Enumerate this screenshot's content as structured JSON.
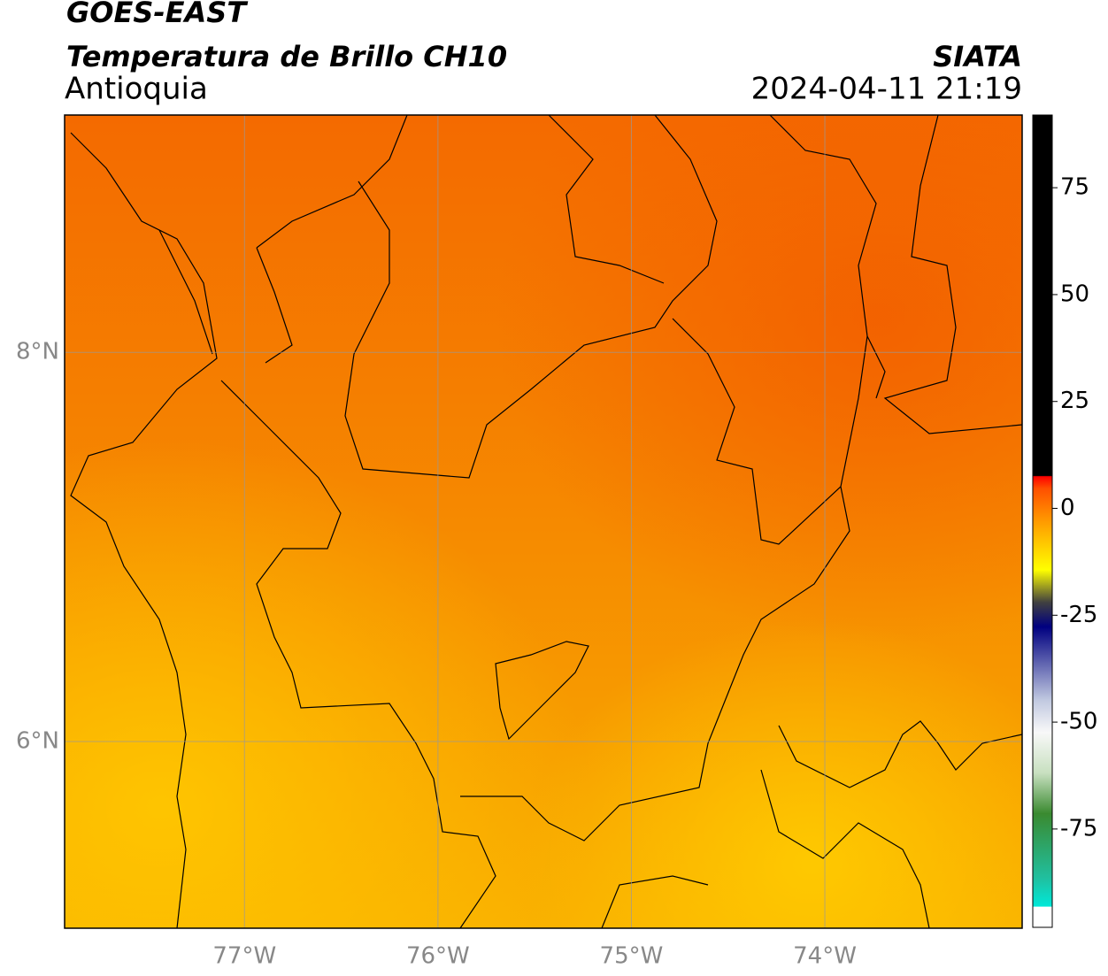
{
  "chart_data": {
    "type": "map",
    "title": "GOES-EAST",
    "subtitle": "Temperatura de Brillo CH10",
    "region": "Antioquia",
    "source": "SIATA",
    "timestamp": "2024-04-11 21:19",
    "xlim": [
      -77.93,
      -72.98
    ],
    "ylim": [
      5.04,
      9.22
    ],
    "xticks": [
      {
        "value": -77,
        "label": "77°W"
      },
      {
        "value": -76,
        "label": "76°W"
      },
      {
        "value": -75,
        "label": "75°W"
      },
      {
        "value": -74,
        "label": "74°W"
      }
    ],
    "yticks": [
      {
        "value": 6,
        "label": "6°N"
      },
      {
        "value": 8,
        "label": "8°N"
      }
    ],
    "grid": true,
    "colorbar": {
      "lim": [
        -98,
        92
      ],
      "ticks": [
        75,
        50,
        25,
        0,
        -25,
        -50,
        -75
      ]
    }
  }
}
